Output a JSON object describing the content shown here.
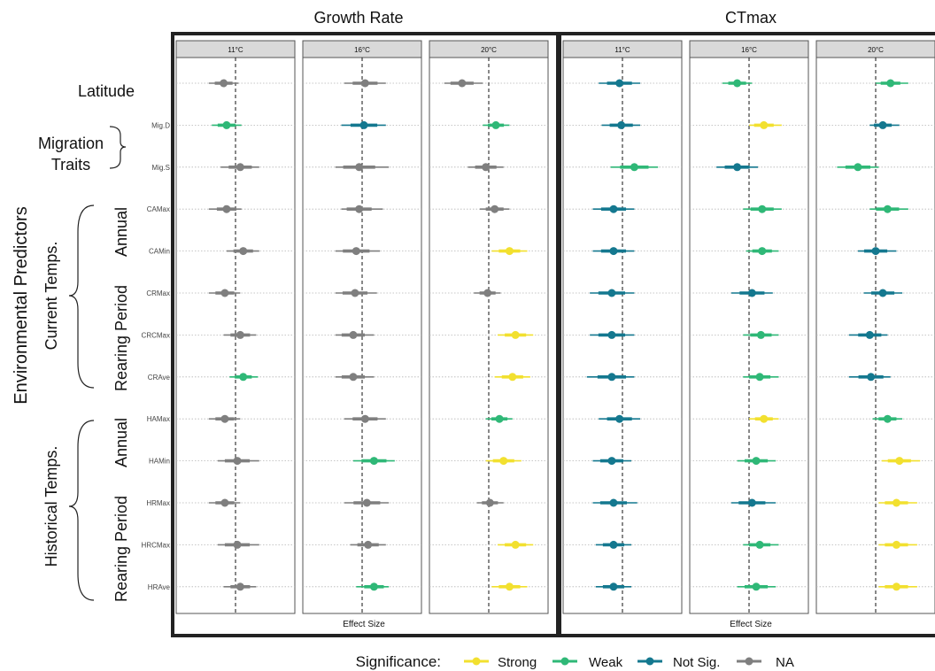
{
  "sections": [
    {
      "title": "Growth Rate",
      "xlabel": "Effect Size",
      "facets": [
        "11°C",
        "16°C",
        "20°C"
      ]
    },
    {
      "title": "CTmax",
      "xlabel": "Effect Size",
      "facets": [
        "11°C",
        "16°C",
        "20°C"
      ]
    }
  ],
  "rows": [
    "",
    "Mig.D",
    "Mig.S",
    "CAMax",
    "CAMin",
    "CRMax",
    "CRCMax",
    "CRAve",
    "HAMax",
    "HAMin",
    "HRMax",
    "HRCMax",
    "HRAve"
  ],
  "left_labels": {
    "environmental": "Environmental Predictors",
    "latitude": "Latitude",
    "migration_line1": "Migration",
    "migration_line2": "Traits",
    "current": "Current Temps.",
    "historical": "Historical Temps.",
    "annual": "Annual",
    "rearing": "Rearing Period"
  },
  "legend": {
    "title": "Significance:",
    "items": [
      {
        "label": "Strong",
        "color": "#f2e02f"
      },
      {
        "label": "Weak",
        "color": "#2fb877"
      },
      {
        "label": "Not Sig.",
        "color": "#14788f"
      },
      {
        "label": "NA",
        "color": "#7f7f7f"
      }
    ]
  },
  "colors": {
    "Strong": "#f2e02f",
    "Weak": "#2fb877",
    "Not Sig.": "#14788f",
    "NA": "#7f7f7f",
    "strip": "#d9d9d9"
  },
  "chart_data": {
    "type": "scatter",
    "description_type": "coefficient forest plot",
    "x_reference_line": 0,
    "panels": [
      {
        "section": "Growth Rate",
        "facet": "11°C",
        "points": [
          {
            "row": "Latitude",
            "estimate": -0.2,
            "low": -0.45,
            "high": 0.05,
            "sig": "NA"
          },
          {
            "row": "Mig.D",
            "estimate": -0.15,
            "low": -0.4,
            "high": 0.1,
            "sig": "Weak"
          },
          {
            "row": "Mig.S",
            "estimate": 0.08,
            "low": -0.25,
            "high": 0.4,
            "sig": "NA"
          },
          {
            "row": "CAMax",
            "estimate": -0.15,
            "low": -0.45,
            "high": 0.1,
            "sig": "NA"
          },
          {
            "row": "CAMin",
            "estimate": 0.13,
            "low": -0.15,
            "high": 0.4,
            "sig": "NA"
          },
          {
            "row": "CRMax",
            "estimate": -0.18,
            "low": -0.45,
            "high": 0.08,
            "sig": "NA"
          },
          {
            "row": "CRCMax",
            "estimate": 0.08,
            "low": -0.2,
            "high": 0.35,
            "sig": "NA"
          },
          {
            "row": "CRAve",
            "estimate": 0.13,
            "low": -0.1,
            "high": 0.38,
            "sig": "Weak"
          },
          {
            "row": "HAMax",
            "estimate": -0.18,
            "low": -0.45,
            "high": 0.08,
            "sig": "NA"
          },
          {
            "row": "HAMin",
            "estimate": 0.03,
            "low": -0.3,
            "high": 0.4,
            "sig": "NA"
          },
          {
            "row": "HRMax",
            "estimate": -0.18,
            "low": -0.45,
            "high": 0.08,
            "sig": "NA"
          },
          {
            "row": "HRCMax",
            "estimate": 0.03,
            "low": -0.3,
            "high": 0.4,
            "sig": "NA"
          },
          {
            "row": "HRAve",
            "estimate": 0.08,
            "low": -0.2,
            "high": 0.35,
            "sig": "NA"
          }
        ]
      },
      {
        "section": "Growth Rate",
        "facet": "16°C",
        "points": [
          {
            "row": "Latitude",
            "estimate": 0.05,
            "low": -0.3,
            "high": 0.4,
            "sig": "NA"
          },
          {
            "row": "Mig.D",
            "estimate": 0.03,
            "low": -0.35,
            "high": 0.4,
            "sig": "Not Sig."
          },
          {
            "row": "Mig.S",
            "estimate": -0.05,
            "low": -0.45,
            "high": 0.45,
            "sig": "NA"
          },
          {
            "row": "CAMax",
            "estimate": -0.05,
            "low": -0.35,
            "high": 0.35,
            "sig": "NA"
          },
          {
            "row": "CAMin",
            "estimate": -0.1,
            "low": -0.45,
            "high": 0.3,
            "sig": "NA"
          },
          {
            "row": "CRMax",
            "estimate": -0.12,
            "low": -0.45,
            "high": 0.25,
            "sig": "NA"
          },
          {
            "row": "CRCMax",
            "estimate": -0.15,
            "low": -0.45,
            "high": 0.2,
            "sig": "NA"
          },
          {
            "row": "CRAve",
            "estimate": -0.15,
            "low": -0.45,
            "high": 0.2,
            "sig": "NA"
          },
          {
            "row": "HAMax",
            "estimate": 0.05,
            "low": -0.3,
            "high": 0.4,
            "sig": "NA"
          },
          {
            "row": "HAMin",
            "estimate": 0.2,
            "low": -0.15,
            "high": 0.55,
            "sig": "Weak"
          },
          {
            "row": "HRMax",
            "estimate": 0.08,
            "low": -0.3,
            "high": 0.45,
            "sig": "NA"
          },
          {
            "row": "HRCMax",
            "estimate": 0.1,
            "low": -0.2,
            "high": 0.4,
            "sig": "NA"
          },
          {
            "row": "HRAve",
            "estimate": 0.2,
            "low": -0.1,
            "high": 0.45,
            "sig": "Weak"
          }
        ]
      },
      {
        "section": "Growth Rate",
        "facet": "20°C",
        "points": [
          {
            "row": "Latitude",
            "estimate": -0.45,
            "low": -0.75,
            "high": -0.1,
            "sig": "NA"
          },
          {
            "row": "Mig.D",
            "estimate": 0.12,
            "low": -0.1,
            "high": 0.35,
            "sig": "Weak"
          },
          {
            "row": "Mig.S",
            "estimate": -0.05,
            "low": -0.35,
            "high": 0.25,
            "sig": "NA"
          },
          {
            "row": "CAMax",
            "estimate": 0.1,
            "low": -0.15,
            "high": 0.35,
            "sig": "NA"
          },
          {
            "row": "CAMin",
            "estimate": 0.35,
            "low": 0.05,
            "high": 0.65,
            "sig": "Strong"
          },
          {
            "row": "CRMax",
            "estimate": -0.02,
            "low": -0.25,
            "high": 0.2,
            "sig": "NA"
          },
          {
            "row": "CRCMax",
            "estimate": 0.45,
            "low": 0.15,
            "high": 0.75,
            "sig": "Strong"
          },
          {
            "row": "CRAve",
            "estimate": 0.4,
            "low": 0.1,
            "high": 0.7,
            "sig": "Strong"
          },
          {
            "row": "HAMax",
            "estimate": 0.18,
            "low": -0.05,
            "high": 0.4,
            "sig": "Weak"
          },
          {
            "row": "HAMin",
            "estimate": 0.25,
            "low": -0.05,
            "high": 0.55,
            "sig": "Strong"
          },
          {
            "row": "HRMax",
            "estimate": 0.02,
            "low": -0.2,
            "high": 0.25,
            "sig": "NA"
          },
          {
            "row": "HRCMax",
            "estimate": 0.45,
            "low": 0.15,
            "high": 0.75,
            "sig": "Strong"
          },
          {
            "row": "HRAve",
            "estimate": 0.35,
            "low": 0.05,
            "high": 0.65,
            "sig": "Strong"
          }
        ]
      },
      {
        "section": "CTmax",
        "facet": "11°C",
        "points": [
          {
            "row": "Latitude",
            "estimate": -0.05,
            "low": -0.4,
            "high": 0.3,
            "sig": "Not Sig."
          },
          {
            "row": "Mig.D",
            "estimate": -0.02,
            "low": -0.35,
            "high": 0.3,
            "sig": "Not Sig."
          },
          {
            "row": "Mig.S",
            "estimate": 0.2,
            "low": -0.2,
            "high": 0.6,
            "sig": "Weak"
          },
          {
            "row": "CAMax",
            "estimate": -0.15,
            "low": -0.5,
            "high": 0.2,
            "sig": "Not Sig."
          },
          {
            "row": "CAMin",
            "estimate": -0.15,
            "low": -0.5,
            "high": 0.2,
            "sig": "Not Sig."
          },
          {
            "row": "CRMax",
            "estimate": -0.18,
            "low": -0.55,
            "high": 0.2,
            "sig": "Not Sig."
          },
          {
            "row": "CRCMax",
            "estimate": -0.18,
            "low": -0.55,
            "high": 0.2,
            "sig": "Not Sig."
          },
          {
            "row": "CRAve",
            "estimate": -0.18,
            "low": -0.6,
            "high": 0.2,
            "sig": "Not Sig."
          },
          {
            "row": "HAMax",
            "estimate": -0.05,
            "low": -0.4,
            "high": 0.3,
            "sig": "Not Sig."
          },
          {
            "row": "HAMin",
            "estimate": -0.18,
            "low": -0.5,
            "high": 0.15,
            "sig": "Not Sig."
          },
          {
            "row": "HRMax",
            "estimate": -0.15,
            "low": -0.5,
            "high": 0.25,
            "sig": "Not Sig."
          },
          {
            "row": "HRCMax",
            "estimate": -0.15,
            "low": -0.45,
            "high": 0.15,
            "sig": "Not Sig."
          },
          {
            "row": "HRAve",
            "estimate": -0.15,
            "low": -0.45,
            "high": 0.15,
            "sig": "Not Sig."
          }
        ]
      },
      {
        "section": "CTmax",
        "facet": "16°C",
        "points": [
          {
            "row": "Latitude",
            "estimate": -0.2,
            "low": -0.45,
            "high": 0.05,
            "sig": "Weak"
          },
          {
            "row": "Mig.D",
            "estimate": 0.25,
            "low": 0.0,
            "high": 0.55,
            "sig": "Strong"
          },
          {
            "row": "Mig.S",
            "estimate": -0.2,
            "low": -0.55,
            "high": 0.15,
            "sig": "Not Sig."
          },
          {
            "row": "CAMax",
            "estimate": 0.22,
            "low": -0.1,
            "high": 0.55,
            "sig": "Weak"
          },
          {
            "row": "CAMin",
            "estimate": 0.22,
            "low": -0.05,
            "high": 0.5,
            "sig": "Weak"
          },
          {
            "row": "CRMax",
            "estimate": 0.05,
            "low": -0.3,
            "high": 0.4,
            "sig": "Not Sig."
          },
          {
            "row": "CRCMax",
            "estimate": 0.2,
            "low": -0.1,
            "high": 0.5,
            "sig": "Weak"
          },
          {
            "row": "CRAve",
            "estimate": 0.18,
            "low": -0.1,
            "high": 0.5,
            "sig": "Weak"
          },
          {
            "row": "HAMax",
            "estimate": 0.25,
            "low": 0.0,
            "high": 0.5,
            "sig": "Strong"
          },
          {
            "row": "HAMin",
            "estimate": 0.12,
            "low": -0.2,
            "high": 0.45,
            "sig": "Weak"
          },
          {
            "row": "HRMax",
            "estimate": 0.05,
            "low": -0.3,
            "high": 0.45,
            "sig": "Not Sig."
          },
          {
            "row": "HRCMax",
            "estimate": 0.18,
            "low": -0.1,
            "high": 0.5,
            "sig": "Weak"
          },
          {
            "row": "HRAve",
            "estimate": 0.12,
            "low": -0.2,
            "high": 0.45,
            "sig": "Weak"
          }
        ]
      },
      {
        "section": "CTmax",
        "facet": "20°C",
        "points": [
          {
            "row": "Latitude",
            "estimate": 0.25,
            "low": 0.0,
            "high": 0.55,
            "sig": "Weak"
          },
          {
            "row": "Mig.D",
            "estimate": 0.12,
            "low": -0.1,
            "high": 0.4,
            "sig": "Not Sig."
          },
          {
            "row": "Mig.S",
            "estimate": -0.3,
            "low": -0.65,
            "high": 0.05,
            "sig": "Weak"
          },
          {
            "row": "CAMax",
            "estimate": 0.2,
            "low": -0.1,
            "high": 0.55,
            "sig": "Weak"
          },
          {
            "row": "CAMin",
            "estimate": 0.0,
            "low": -0.3,
            "high": 0.35,
            "sig": "Not Sig."
          },
          {
            "row": "CRMax",
            "estimate": 0.12,
            "low": -0.2,
            "high": 0.45,
            "sig": "Not Sig."
          },
          {
            "row": "CRCMax",
            "estimate": -0.1,
            "low": -0.45,
            "high": 0.2,
            "sig": "Not Sig."
          },
          {
            "row": "CRAve",
            "estimate": -0.08,
            "low": -0.45,
            "high": 0.25,
            "sig": "Not Sig."
          },
          {
            "row": "HAMax",
            "estimate": 0.2,
            "low": -0.05,
            "high": 0.45,
            "sig": "Weak"
          },
          {
            "row": "HAMin",
            "estimate": 0.4,
            "low": 0.1,
            "high": 0.75,
            "sig": "Strong"
          },
          {
            "row": "HRMax",
            "estimate": 0.35,
            "low": 0.05,
            "high": 0.7,
            "sig": "Strong"
          },
          {
            "row": "HRCMax",
            "estimate": 0.35,
            "low": 0.05,
            "high": 0.7,
            "sig": "Strong"
          },
          {
            "row": "HRAve",
            "estimate": 0.35,
            "low": 0.05,
            "high": 0.7,
            "sig": "Strong"
          }
        ]
      }
    ]
  }
}
